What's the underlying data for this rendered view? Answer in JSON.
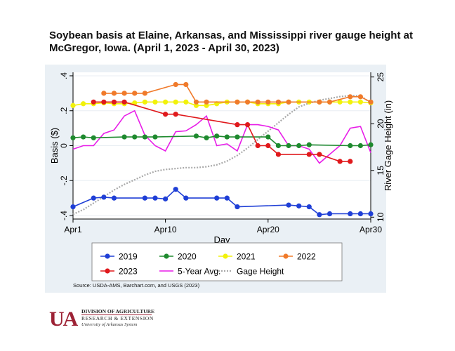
{
  "chart_data": {
    "type": "line",
    "title": "Soybean basis at Elaine, Arkansas, and Mississippi river gauge height at McGregor, Iowa. (April 1, 2023 - April 30, 2023)",
    "xlabel": "Day",
    "ylabel": "Basis ($)",
    "y2label": "River Gage Height (in)",
    "x_ticks": [
      {
        "day": 1,
        "label": "Apr1"
      },
      {
        "day": 10,
        "label": "Apr10"
      },
      {
        "day": 20,
        "label": "Apr20"
      },
      {
        "day": 30,
        "label": "Apr30"
      }
    ],
    "y_ticks": [
      {
        "value": -0.4,
        "label": "-.4"
      },
      {
        "value": -0.2,
        "label": "-.2"
      },
      {
        "value": 0,
        "label": "0"
      },
      {
        "value": 0.2,
        "label": ".2"
      },
      {
        "value": 0.4,
        "label": ".4"
      }
    ],
    "y2_ticks": [
      {
        "value": 10,
        "label": "10"
      },
      {
        "value": 15,
        "label": "15"
      },
      {
        "value": 20,
        "label": "20"
      },
      {
        "value": 25,
        "label": "25"
      }
    ],
    "xlim": [
      1,
      30
    ],
    "ylim": [
      -0.42,
      0.42
    ],
    "y2lim": [
      9.8,
      25.5
    ],
    "grid": "horizontal",
    "legend_position": "bottom",
    "series": [
      {
        "name": "2019",
        "color": "#1f3fd6",
        "axis": "left",
        "marker": true,
        "line": true,
        "x": [
          1,
          3,
          4,
          5,
          8,
          9,
          10,
          11,
          12,
          15,
          16,
          17,
          22,
          23,
          24,
          25,
          26,
          28,
          29,
          30
        ],
        "y": [
          -0.35,
          -0.3,
          -0.295,
          -0.3,
          -0.3,
          -0.3,
          -0.305,
          -0.25,
          -0.3,
          -0.3,
          -0.3,
          -0.35,
          -0.34,
          -0.345,
          -0.35,
          -0.395,
          -0.39,
          -0.39,
          -0.39,
          -0.39
        ]
      },
      {
        "name": "2020",
        "color": "#1e8a2e",
        "axis": "left",
        "marker": true,
        "line": true,
        "x": [
          1,
          2,
          3,
          6,
          7,
          8,
          9,
          13,
          14,
          15,
          16,
          17,
          20,
          21,
          22,
          23,
          24,
          28,
          29,
          30
        ],
        "y": [
          0.045,
          0.05,
          0.045,
          0.05,
          0.05,
          0.05,
          0.05,
          0.055,
          0.045,
          0.055,
          0.05,
          0.05,
          0.05,
          0.0,
          0.0,
          0.0,
          0.005,
          0.0,
          0.0,
          0.005
        ]
      },
      {
        "name": "2021",
        "color": "#f2f20a",
        "axis": "left",
        "marker": true,
        "line": true,
        "x": [
          1,
          2,
          3,
          4,
          5,
          6,
          7,
          8,
          9,
          10,
          11,
          12,
          13,
          14,
          15,
          16,
          17,
          18,
          19,
          20,
          21,
          22,
          23,
          24,
          25,
          26,
          27,
          28,
          29,
          30
        ],
        "y": [
          0.23,
          0.24,
          0.24,
          0.245,
          0.24,
          0.24,
          0.245,
          0.25,
          0.25,
          0.25,
          0.25,
          0.25,
          0.23,
          0.23,
          0.24,
          0.25,
          0.25,
          0.25,
          0.24,
          0.24,
          0.24,
          0.25,
          0.25,
          0.25,
          0.25,
          0.25,
          0.25,
          0.25,
          0.25,
          0.245
        ]
      },
      {
        "name": "2022",
        "color": "#f07a2a",
        "axis": "left",
        "marker": true,
        "line": true,
        "x": [
          4,
          5,
          6,
          7,
          8,
          11,
          12,
          13,
          14,
          17,
          18,
          19,
          20,
          21,
          22,
          25,
          26,
          28,
          29,
          30
        ],
        "y": [
          0.3,
          0.3,
          0.3,
          0.3,
          0.3,
          0.35,
          0.35,
          0.25,
          0.25,
          0.25,
          0.25,
          0.25,
          0.25,
          0.25,
          0.25,
          0.25,
          0.25,
          0.28,
          0.28,
          0.25
        ]
      },
      {
        "name": "2023",
        "color": "#e0191c",
        "axis": "left",
        "marker": true,
        "line": true,
        "x": [
          3,
          4,
          5,
          6,
          10,
          11,
          17,
          18,
          19,
          20,
          21,
          24,
          25,
          27,
          28
        ],
        "y": [
          0.25,
          0.25,
          0.25,
          0.25,
          0.18,
          0.18,
          0.12,
          0.12,
          0.0,
          0.0,
          -0.05,
          -0.05,
          -0.05,
          -0.09,
          -0.09
        ]
      },
      {
        "name": "5-Year Avg.",
        "color": "#e81de8",
        "axis": "left",
        "marker": false,
        "line": true,
        "x": [
          1,
          2,
          3,
          4,
          5,
          6,
          7,
          8,
          9,
          10,
          11,
          12,
          13,
          14,
          15,
          16,
          17,
          18,
          19,
          20,
          21,
          22,
          23,
          24,
          25,
          26,
          27,
          28,
          29,
          30
        ],
        "y": [
          -0.02,
          0.0,
          0.0,
          0.07,
          0.09,
          0.17,
          0.2,
          0.06,
          0.0,
          -0.03,
          0.08,
          0.085,
          0.12,
          0.17,
          0.0,
          0.01,
          -0.03,
          0.12,
          0.12,
          0.11,
          0.09,
          0.0,
          0.0,
          -0.02,
          -0.1,
          -0.05,
          0.0,
          0.1,
          0.11,
          -0.04
        ]
      },
      {
        "name": "Gage Height",
        "color": "#a9a9a9",
        "axis": "right",
        "marker": false,
        "line": true,
        "dashed": true,
        "x": [
          1,
          2,
          3,
          4,
          5,
          6,
          7,
          8,
          9,
          10,
          11,
          12,
          13,
          14,
          15,
          16,
          17,
          18,
          19,
          20,
          21,
          22,
          23,
          24,
          25,
          26,
          27,
          28,
          29,
          30
        ],
        "y": [
          10.3,
          10.8,
          11.5,
          12.2,
          12.9,
          13.5,
          14.0,
          14.5,
          14.9,
          15.1,
          15.2,
          15.3,
          15.3,
          15.4,
          15.6,
          16.0,
          16.6,
          17.4,
          18.3,
          19.2,
          20.1,
          21.0,
          21.8,
          22.2,
          22.5,
          22.7,
          22.9,
          23.0,
          23.0,
          22.2
        ]
      }
    ],
    "legend_order": [
      "2019",
      "2020",
      "2021",
      "2022",
      "2023",
      "5-Year Avg.",
      "Gage Height"
    ]
  },
  "source_note": "Source: USDA-AMS, Barchart.com, and USGS (2023)",
  "logo": {
    "mark": "UA",
    "line1": "DIVISION OF AGRICULTURE",
    "line2": "RESEARCH & EXTENSION",
    "line3": "University of Arkansas System"
  }
}
